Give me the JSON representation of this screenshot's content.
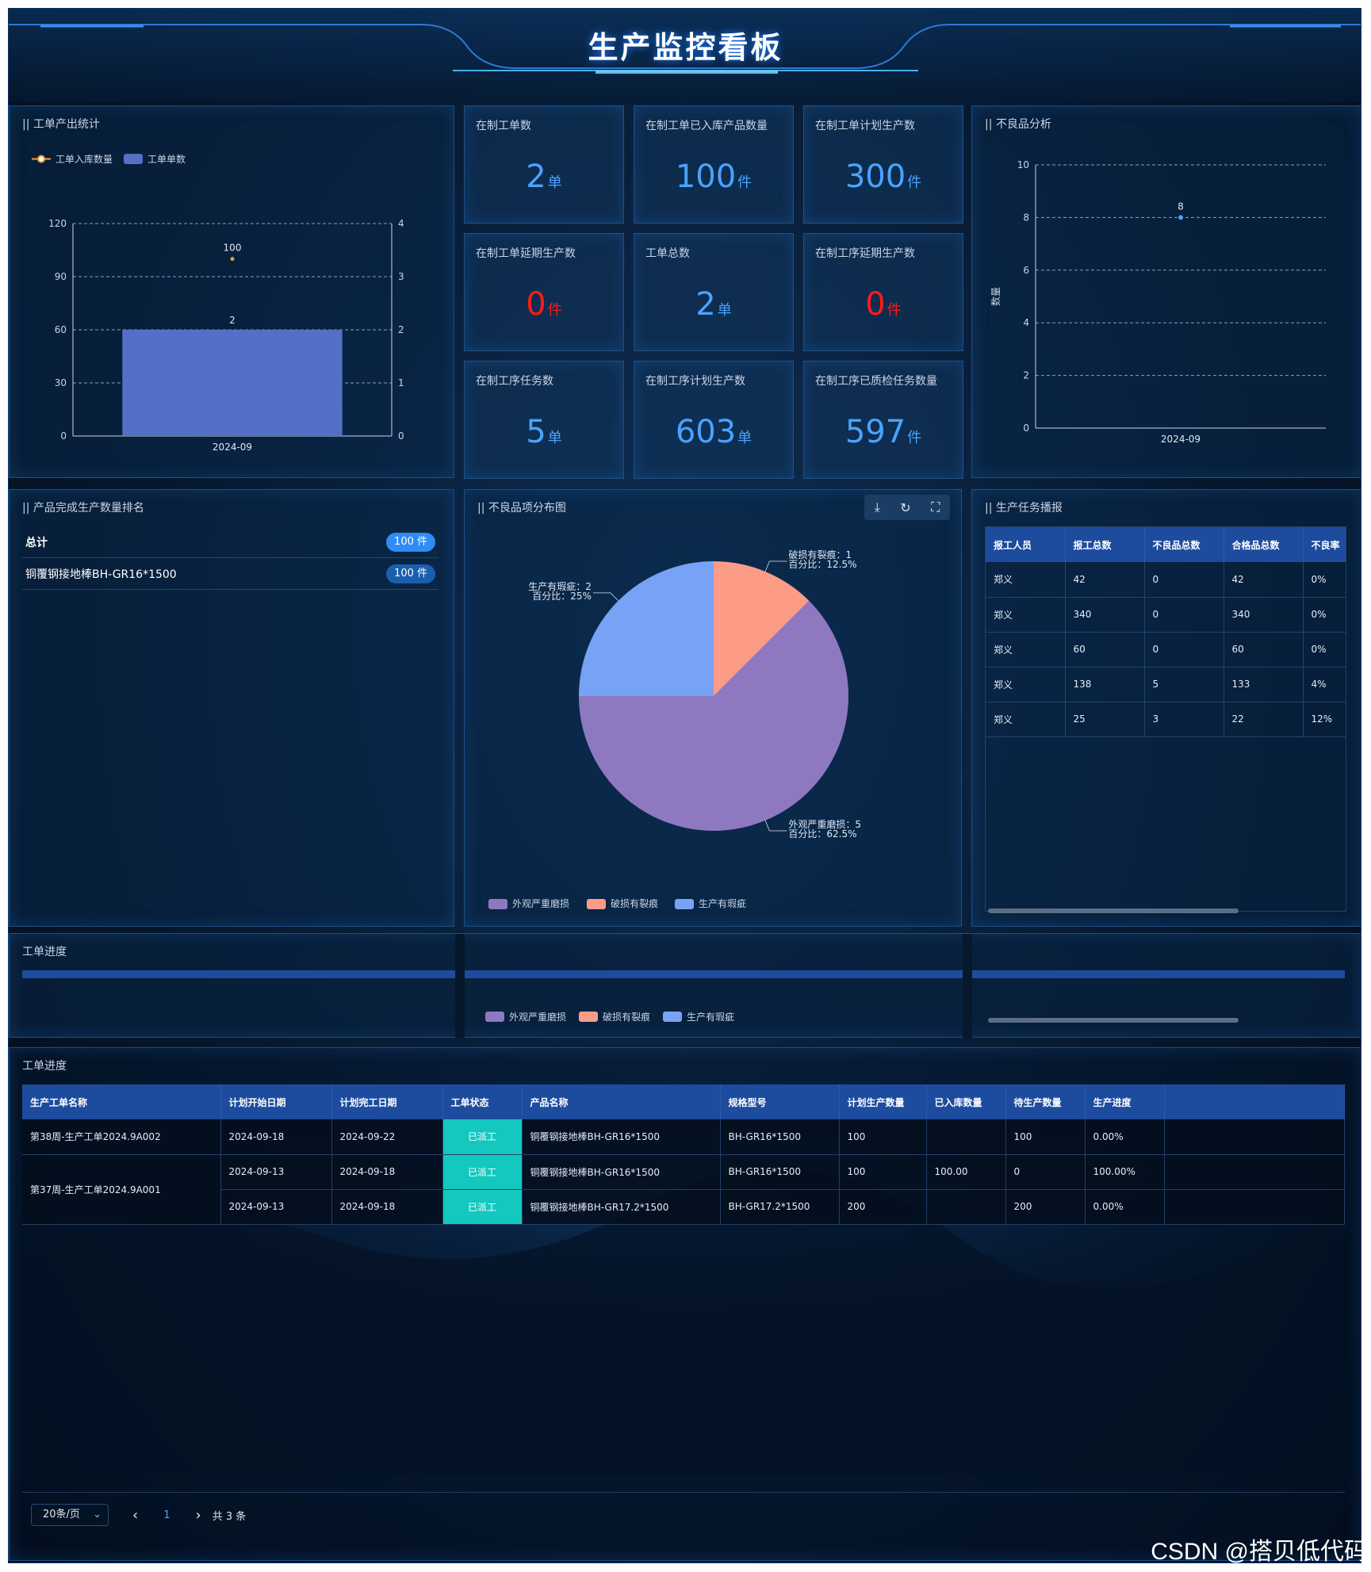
{
  "title": "生产监控看板",
  "output_stats": {
    "title": "|| 工单产出统计",
    "legend_line": "工单入库数量",
    "legend_bar": "工单单数",
    "colors": {
      "line": "#ff9a3c",
      "bar": "#5470c6"
    }
  },
  "stats": [
    {
      "label": "在制工单数",
      "value": "2",
      "unit": "单",
      "color": "blue"
    },
    {
      "label": "在制工单已入库产品数量",
      "value": "100",
      "unit": "件",
      "color": "blue"
    },
    {
      "label": "在制工单计划生产数",
      "value": "300",
      "unit": "件",
      "color": "blue"
    },
    {
      "label": "在制工单延期生产数",
      "value": "0",
      "unit": "件",
      "color": "red"
    },
    {
      "label": "工单总数",
      "value": "2",
      "unit": "单",
      "color": "blue"
    },
    {
      "label": "在制工序延期生产数",
      "value": "0",
      "unit": "件",
      "color": "red"
    },
    {
      "label": "在制工序任务数",
      "value": "5",
      "unit": "单",
      "color": "blue"
    },
    {
      "label": "在制工序计划生产数",
      "value": "603",
      "unit": "单",
      "color": "blue"
    },
    {
      "label": "在制工序已质检任务数量",
      "value": "597",
      "unit": "件",
      "color": "blue"
    }
  ],
  "defect_analysis": {
    "title": "|| 不良品分析",
    "ylabel": "数量"
  },
  "ranking": {
    "title": "|| 产品完成生产数量排名",
    "rows": [
      {
        "name": "总计",
        "count": "100 件",
        "color": "#2f8cf5"
      },
      {
        "name": "铜覆钢接地棒BH-GR16*1500",
        "count": "100 件",
        "color": "#1a5fae"
      }
    ]
  },
  "pie": {
    "title": "|| 不良品项分布图",
    "tools": {
      "save": "⤓",
      "refresh": "↻",
      "fullscreen": "⛶"
    },
    "labels": [
      {
        "line1": "生产有瑕疵：2",
        "line2": "百分比：25%"
      },
      {
        "line1": "破损有裂痕：1",
        "line2": "百分比：12.5%"
      },
      {
        "line1": "外观严重磨损：5",
        "line2": "百分比：62.5%"
      }
    ]
  },
  "task_report": {
    "title": "|| 生产任务播报",
    "headers": [
      "报工人员",
      "报工总数",
      "不良品总数",
      "合格品总数",
      "不良率"
    ],
    "rows": [
      [
        "郑义",
        "42",
        "0",
        "42",
        "0%"
      ],
      [
        "郑义",
        "340",
        "0",
        "340",
        "0%"
      ],
      [
        "郑义",
        "60",
        "0",
        "60",
        "0%"
      ],
      [
        "郑义",
        "138",
        "5",
        "133",
        "4%"
      ],
      [
        "郑义",
        "25",
        "3",
        "22",
        "12%"
      ]
    ]
  },
  "progress_band": {
    "title": "工单进度"
  },
  "work_orders": {
    "title": "工单进度",
    "headers": [
      "生产工单名称",
      "计划开始日期",
      "计划完工日期",
      "工单状态",
      "产品名称",
      "规格型号",
      "计划生产数量",
      "已入库数量",
      "待生产数量",
      "生产进度"
    ],
    "rows": [
      {
        "name": "第38周-生产工单2024.9A002",
        "start": "2024-09-18",
        "end": "2024-09-22",
        "status": "已派工",
        "product": "铜覆钢接地棒BH-GR16*1500",
        "spec": "BH-GR16*1500",
        "planned": "100",
        "stored": "",
        "pending": "100",
        "progress": "0.00%"
      },
      {
        "name": "第37周-生产工单2024.9A001",
        "start": "2024-09-13",
        "end": "2024-09-18",
        "status": "已派工",
        "product": "铜覆钢接地棒BH-GR16*1500",
        "spec": "BH-GR16*1500",
        "planned": "100",
        "stored": "100.00",
        "pending": "0",
        "progress": "100.00%"
      },
      {
        "name": "",
        "start": "2024-09-13",
        "end": "2024-09-18",
        "status": "已派工",
        "product": "铜覆钢接地棒BH-GR17.2*1500",
        "spec": "BH-GR17.2*1500",
        "planned": "200",
        "stored": "",
        "pending": "200",
        "progress": "0.00%"
      }
    ]
  },
  "pagination": {
    "page_size": "20条/页",
    "prev": "‹",
    "page": "1",
    "next": "›",
    "total": "共 3 条"
  },
  "watermark": "CSDN @搭贝低代码",
  "chart_data": [
    {
      "type": "bar",
      "categories": [
        "2024-09"
      ],
      "series": [
        {
          "name": "工单单数",
          "type": "bar",
          "axis": "right",
          "values": [
            2
          ]
        },
        {
          "name": "工单入库数量",
          "type": "line",
          "axis": "left",
          "values": [
            100
          ]
        }
      ],
      "y_left_ticks": [
        0,
        30,
        60,
        90,
        120
      ],
      "y_right_ticks": [
        0,
        1,
        2,
        3,
        4
      ],
      "ylim_left": [
        0,
        120
      ],
      "ylim_right": [
        0,
        4
      ],
      "legend": "top-left",
      "grid": "horizontal-dashed"
    },
    {
      "type": "scatter",
      "categories": [
        "2024-09"
      ],
      "series": [
        {
          "values": [
            8
          ]
        }
      ],
      "y_ticks": [
        0,
        2,
        4,
        6,
        8,
        10
      ],
      "ylim": [
        0,
        10
      ],
      "ylabel": "数量",
      "grid": "horizontal-dashed"
    },
    {
      "type": "pie",
      "slices": [
        {
          "name": "外观严重磨损",
          "value": 5,
          "percent": 62.5,
          "color": "#8e79c1"
        },
        {
          "name": "破损有裂痕",
          "value": 1,
          "percent": 12.5,
          "color": "#fc9c86"
        },
        {
          "name": "生产有瑕疵",
          "value": 2,
          "percent": 25,
          "color": "#78a2f5"
        }
      ],
      "legend": "bottom"
    }
  ]
}
